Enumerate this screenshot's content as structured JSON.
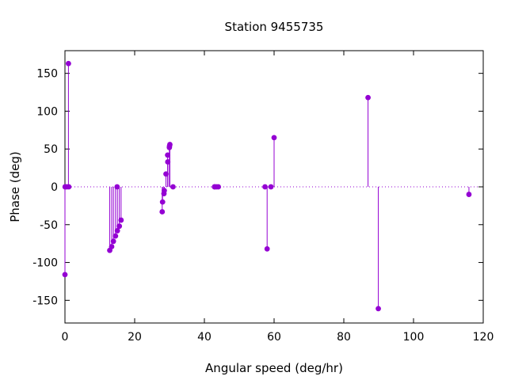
{
  "chart_data": {
    "type": "scatter",
    "style": "impulses-with-points",
    "title": "Station 9455735",
    "xlabel": "Angular speed (deg/hr)",
    "ylabel": "Phase (deg)",
    "xlim": [
      0,
      120
    ],
    "ylim": [
      -180,
      180
    ],
    "xticks": [
      0,
      20,
      40,
      60,
      80,
      100,
      120
    ],
    "yticks": [
      -150,
      -100,
      -50,
      0,
      50,
      100,
      150
    ],
    "zero_line": "dotted",
    "grid": false,
    "legend": "none",
    "color": "#9400d3",
    "points": [
      {
        "x": 0.0,
        "y": -116
      },
      {
        "x": 0.04,
        "y": 0
      },
      {
        "x": 0.08,
        "y": 0
      },
      {
        "x": 0.55,
        "y": 0
      },
      {
        "x": 1.0,
        "y": 163
      },
      {
        "x": 1.1,
        "y": 0
      },
      {
        "x": 12.85,
        "y": -84
      },
      {
        "x": 13.4,
        "y": -79
      },
      {
        "x": 13.9,
        "y": -72
      },
      {
        "x": 14.5,
        "y": -65
      },
      {
        "x": 14.96,
        "y": 0
      },
      {
        "x": 15.04,
        "y": -58
      },
      {
        "x": 15.6,
        "y": -52
      },
      {
        "x": 16.1,
        "y": -44
      },
      {
        "x": 27.9,
        "y": -33
      },
      {
        "x": 28.0,
        "y": -20
      },
      {
        "x": 28.4,
        "y": -9
      },
      {
        "x": 28.5,
        "y": -5
      },
      {
        "x": 28.98,
        "y": 17
      },
      {
        "x": 29.45,
        "y": 42
      },
      {
        "x": 29.5,
        "y": 33
      },
      {
        "x": 29.96,
        "y": 52
      },
      {
        "x": 30.0,
        "y": 54
      },
      {
        "x": 30.1,
        "y": 56
      },
      {
        "x": 31.0,
        "y": 0
      },
      {
        "x": 42.9,
        "y": 0
      },
      {
        "x": 43.0,
        "y": 0
      },
      {
        "x": 43.5,
        "y": 0
      },
      {
        "x": 44.0,
        "y": 0
      },
      {
        "x": 57.4,
        "y": 0
      },
      {
        "x": 58.0,
        "y": -82
      },
      {
        "x": 59.1,
        "y": 0
      },
      {
        "x": 60.0,
        "y": 65
      },
      {
        "x": 86.95,
        "y": 118
      },
      {
        "x": 89.9,
        "y": -161
      },
      {
        "x": 115.9,
        "y": -10
      }
    ]
  }
}
